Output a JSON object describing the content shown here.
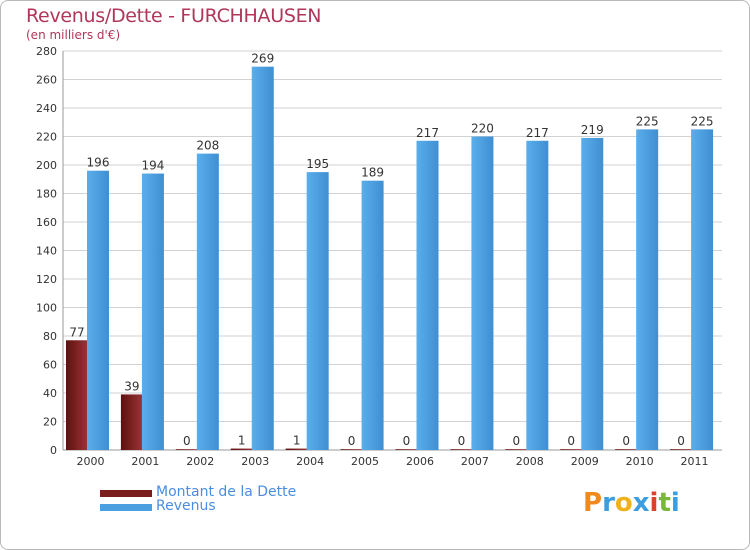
{
  "title": "Revenus/Dette - FURCHHAUSEN",
  "subtitle": "(en milliers d'€)",
  "colors": {
    "debt": "#7a1e1e",
    "revenue": "#4a9fe0",
    "title": "#b0365a",
    "legend_text": "#4b8de0"
  },
  "chart_data": {
    "type": "bar",
    "categories": [
      "2000",
      "2001",
      "2002",
      "2003",
      "2004",
      "2005",
      "2006",
      "2007",
      "2008",
      "2009",
      "2010",
      "2011"
    ],
    "series": [
      {
        "name": "Montant de la Dette",
        "values": [
          77,
          39,
          0,
          1,
          1,
          0,
          0,
          0,
          0,
          0,
          0,
          0
        ]
      },
      {
        "name": "Revenus",
        "values": [
          196,
          194,
          208,
          269,
          195,
          189,
          217,
          220,
          217,
          219,
          225,
          225
        ]
      }
    ],
    "ylim": [
      0,
      280
    ],
    "yticks": [
      0,
      20,
      40,
      60,
      80,
      100,
      120,
      140,
      160,
      180,
      200,
      220,
      240,
      260,
      280
    ],
    "grid": true,
    "legend_position": "bottom-left"
  },
  "legend": {
    "items": [
      {
        "label": "Montant de la Dette",
        "color": "#7a1e1e"
      },
      {
        "label": "Revenus",
        "color": "#4a9fe0"
      }
    ]
  },
  "logo": {
    "letters": [
      "P",
      "r",
      "o",
      "x",
      "i",
      "t",
      "i"
    ],
    "colors": [
      "#f08a1c",
      "#3c9ee0",
      "#f0b21c",
      "#3c9ee0",
      "#e0402a",
      "#7ab83a",
      "#3c9ee0"
    ]
  }
}
